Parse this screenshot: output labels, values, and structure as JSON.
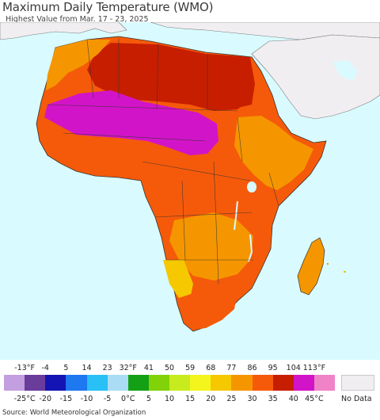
{
  "header": {
    "title": "Maximum Daily Temperature (WMO)",
    "subtitle": "Highest Value from Mar. 17 - 23, 2025"
  },
  "legend": {
    "fahrenheit_labels": [
      "-13°F",
      "-4",
      "5",
      "14",
      "23",
      "32°F",
      "41",
      "50",
      "59",
      "68",
      "77",
      "86",
      "95",
      "104",
      "113°F"
    ],
    "celsius_labels": [
      "-25°C",
      "-20",
      "-15",
      "-10",
      "-5",
      "0°C",
      "5",
      "10",
      "15",
      "20",
      "25",
      "30",
      "35",
      "40",
      "45°C"
    ],
    "colors": [
      "#c39ee0",
      "#6a3c9c",
      "#1414b4",
      "#1e78f0",
      "#28c0f5",
      "#aadcf5",
      "#14a014",
      "#82d20a",
      "#c8eb1e",
      "#f5f51e",
      "#f5c800",
      "#f59600",
      "#f55a0a",
      "#c81e00",
      "#d214c8",
      "#f082c8"
    ],
    "no_data_label": "No Data",
    "no_data_color": "#f1eef2"
  },
  "source": "Source: World Meteorological Organization",
  "map": {
    "ocean_color": "#d9fbff",
    "no_data_land_color": "#f1eef2"
  }
}
